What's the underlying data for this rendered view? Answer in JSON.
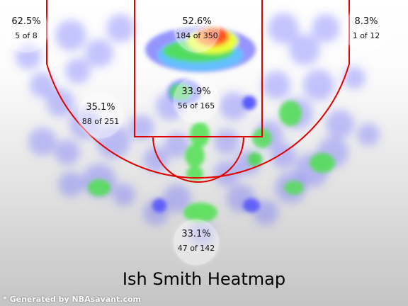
{
  "title": "Ish Smith Heatmap",
  "credit": "* Generated by NBAsavant.com",
  "colors": {
    "court_lines": "#e00000",
    "heat_low": "#5a5aff",
    "heat_mid": "#3ddc3d",
    "heat_high": "#ff6a2a"
  },
  "zones": [
    {
      "id": "left-corner",
      "pct": "62.5%",
      "made_of": "5 of 8"
    },
    {
      "id": "restricted-area",
      "pct": "52.6%",
      "made_of": "184 of 350"
    },
    {
      "id": "right-corner",
      "pct": "8.3%",
      "made_of": "1 of 12"
    },
    {
      "id": "left-wing",
      "pct": "35.1%",
      "made_of": "88 of 251"
    },
    {
      "id": "paint",
      "pct": "33.9%",
      "made_of": "56 of 165"
    },
    {
      "id": "top-key",
      "pct": "33.1%",
      "made_of": "47 of 142"
    }
  ]
}
